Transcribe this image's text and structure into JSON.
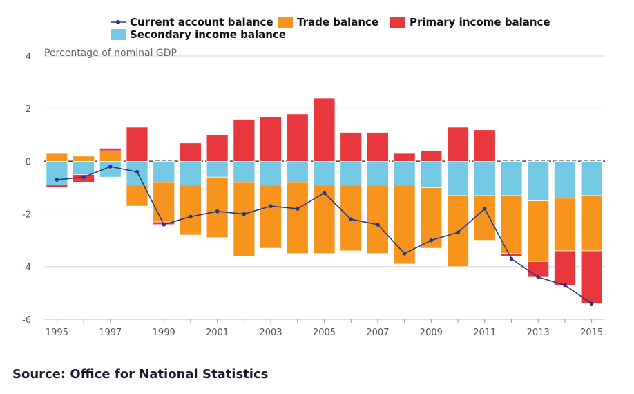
{
  "chart_data": {
    "type": "bar",
    "subtype": "stacked bar with line overlay",
    "ylabel": "Percentage of nominal GDP",
    "ylim": [
      -6,
      4
    ],
    "yticks": [
      4,
      2,
      0,
      -2,
      -4,
      -6
    ],
    "grid": true,
    "legend_position": "top",
    "categories": [
      "1995",
      "1996",
      "1997",
      "1998",
      "1999",
      "2000",
      "2001",
      "2002",
      "2003",
      "2004",
      "2005",
      "2006",
      "2007",
      "2008",
      "2009",
      "2010",
      "2011",
      "2012",
      "2013",
      "2014",
      "2015"
    ],
    "xtick_labels": [
      "1995",
      "1997",
      "1999",
      "2001",
      "2003",
      "2005",
      "2007",
      "2009",
      "2011",
      "2013",
      "2015"
    ],
    "series": [
      {
        "name": "Current account balance",
        "kind": "line",
        "color": "#1f3a8a",
        "values": [
          -0.7,
          -0.6,
          -0.2,
          -0.4,
          -2.4,
          -2.1,
          -1.9,
          -2.0,
          -1.7,
          -1.8,
          -1.2,
          -2.2,
          -2.4,
          -3.5,
          -3.0,
          -2.7,
          -1.8,
          -3.7,
          -4.4,
          -4.7,
          -5.4
        ]
      },
      {
        "name": "Trade balance",
        "kind": "bar",
        "color": "#f7941d",
        "values": [
          0.3,
          0.2,
          0.4,
          -0.8,
          -1.5,
          -1.9,
          -2.3,
          -2.8,
          -2.4,
          -2.7,
          -2.6,
          -2.5,
          -2.6,
          -3.0,
          -2.3,
          -2.7,
          -1.7,
          -2.2,
          -2.3,
          -2.0,
          -2.1
        ]
      },
      {
        "name": "Primary income balance",
        "kind": "bar",
        "color": "#e8383d",
        "values": [
          -0.1,
          -0.3,
          0.1,
          1.3,
          -0.1,
          0.7,
          1.0,
          1.6,
          1.7,
          1.8,
          2.4,
          1.1,
          1.1,
          0.3,
          0.4,
          1.3,
          1.2,
          -0.1,
          -0.6,
          -1.3,
          -2.0
        ]
      },
      {
        "name": "Secondary income balance",
        "kind": "bar",
        "color": "#74c9e4",
        "values": [
          -0.9,
          -0.5,
          -0.6,
          -0.9,
          -0.8,
          -0.9,
          -0.6,
          -0.8,
          -0.9,
          -0.8,
          -0.9,
          -0.9,
          -0.9,
          -0.9,
          -1.0,
          -1.3,
          -1.3,
          -1.3,
          -1.5,
          -1.4,
          -1.3
        ]
      }
    ]
  },
  "source": "Source: Office for National Statistics"
}
